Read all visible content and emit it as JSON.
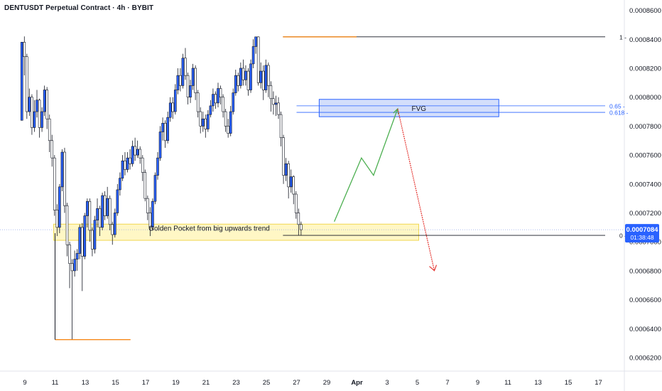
{
  "header": {
    "title": "DENTUSDT Perpetual Contract · 4h · BYBIT"
  },
  "colors": {
    "up": "#2962ff",
    "down": "#ffffff",
    "wick": "#131722",
    "fvg_fill": "#d3defb",
    "fvg_border": "#2962ff",
    "golden_fill": "#fff7c2",
    "golden_border": "#f0d64a",
    "fib_line": "#2962ff",
    "orange": "#f57c00",
    "green_arrow": "#4caf50",
    "red_arrow": "#e53935",
    "axis_text": "#131722",
    "price_badge": "#2962ff"
  },
  "chart_data": {
    "type": "candlestick",
    "title": "DENTUSDT Perpetual Contract · 4h · BYBIT",
    "timeframe": "4h",
    "exchange": "BYBIT",
    "ylim": [
      0.00062,
      0.00086
    ],
    "y_ticks": [
      "0.0006200",
      "0.0006400",
      "0.0006600",
      "0.0006800",
      "0.0007000",
      "0.0007200",
      "0.0007400",
      "0.0007600",
      "0.0007800",
      "0.0008000",
      "0.0008200",
      "0.0008400",
      "0.0008600"
    ],
    "x_ticks": [
      "9",
      "11",
      "13",
      "15",
      "17",
      "19",
      "21",
      "23",
      "25",
      "27",
      "29",
      "Apr",
      "3",
      "5",
      "7",
      "9",
      "11",
      "13",
      "15",
      "17"
    ],
    "current_price": "0.0007084",
    "countdown": "01:38:48",
    "annotations": {
      "fvg": {
        "label": "FVG",
        "top": 0.0007985,
        "bottom": 0.0007865,
        "start_day": 28.5,
        "end_day": 40.4
      },
      "golden_pocket": {
        "label": "Golden Pocket from big upwards trend",
        "top": 0.0007093,
        "bottom": 0.000704,
        "start_day": 11.0,
        "end_day": 35.0
      },
      "fib_levels": [
        {
          "label": "1",
          "price": 0.0008417
        },
        {
          "label": "0.65",
          "price": 0.000794
        },
        {
          "label": "0.618",
          "price": 0.0007895
        },
        {
          "label": "0",
          "price": 0.0007045
        }
      ],
      "swing_high": {
        "price": 0.0008417,
        "start_day": 26.1
      },
      "swing_low": {
        "price": 0.0006324,
        "start_day": 11.0,
        "end_day": 16.0
      },
      "projection_up": [
        [
          29.5,
          0.000714
        ],
        [
          31.3,
          0.000758
        ],
        [
          32.1,
          0.000746
        ],
        [
          33.7,
          0.000792
        ]
      ],
      "projection_down": [
        [
          33.7,
          0.000792
        ],
        [
          35.8,
          0.000685
        ]
      ]
    },
    "candles": [
      [
        0.000784,
        0.000838,
        0.000838,
        0.000784
      ],
      [
        0.000838,
        0.000828,
        0.000842,
        0.000815
      ],
      [
        0.000828,
        0.00079,
        0.00083,
        0.000785
      ],
      [
        0.00079,
        0.0008,
        0.000806,
        0.000787
      ],
      [
        0.0008,
        0.000779,
        0.000802,
        0.000774
      ],
      [
        0.000779,
        0.00079,
        0.000798,
        0.000776
      ],
      [
        0.00079,
        0.000798,
        0.000805,
        0.000786
      ],
      [
        0.000798,
        0.000779,
        0.000799,
        0.000772
      ],
      [
        0.000779,
        0.00079,
        0.000793,
        0.000776
      ],
      [
        0.00079,
        0.000805,
        0.000808,
        0.000787
      ],
      [
        0.000805,
        0.000785,
        0.000807,
        0.000778
      ],
      [
        0.000785,
        0.00077,
        0.000788,
        0.000762
      ],
      [
        0.00077,
        0.000758,
        0.000774,
        0.000752
      ],
      [
        0.000758,
        0.000722,
        0.00076,
        0.000718
      ],
      [
        0.000722,
        0.00071,
        0.000726,
        0.000704
      ],
      [
        0.00071,
        0.000738,
        0.00074,
        0.000706
      ],
      [
        0.000738,
        0.000762,
        0.000764,
        0.000735
      ],
      [
        0.000762,
        0.000725,
        0.000765,
        0.00072
      ],
      [
        0.000725,
        0.000698,
        0.000727,
        0.00069
      ],
      [
        0.000698,
        0.000685,
        0.0007,
        0.000668
      ],
      [
        0.000685,
        0.00068,
        0.000688,
        0.0006324
      ],
      [
        0.00068,
        0.000688,
        0.000694,
        0.000676
      ],
      [
        0.000688,
        0.000692,
        0.000695,
        0.00068
      ],
      [
        0.000692,
        0.00071,
        0.000712,
        0.000688
      ],
      [
        0.00071,
        0.00069,
        0.000713,
        0.000666
      ],
      [
        0.00069,
        0.000718,
        0.00072,
        0.000688
      ],
      [
        0.000718,
        0.000728,
        0.00073,
        0.00071
      ],
      [
        0.000728,
        0.000708,
        0.00073,
        0.0007
      ],
      [
        0.000708,
        0.000695,
        0.00071,
        0.00069
      ],
      [
        0.000695,
        0.000715,
        0.000718,
        0.000692
      ],
      [
        0.000715,
        0.000723,
        0.00073,
        0.00071
      ],
      [
        0.000723,
        0.00071,
        0.000725,
        0.000704
      ],
      [
        0.00071,
        0.000732,
        0.000734,
        0.000708
      ],
      [
        0.000732,
        0.000718,
        0.000735,
        0.000715
      ],
      [
        0.000718,
        0.00073,
        0.000738,
        0.000716
      ],
      [
        0.00073,
        0.000712,
        0.000732,
        0.000708
      ],
      [
        0.000712,
        0.000705,
        0.000714,
        0.000698
      ],
      [
        0.000705,
        0.00072,
        0.000723,
        0.000703
      ],
      [
        0.00072,
        0.000736,
        0.00074,
        0.000718
      ],
      [
        0.000736,
        0.000744,
        0.000748,
        0.000732
      ],
      [
        0.000744,
        0.000756,
        0.00076,
        0.000742
      ],
      [
        0.000756,
        0.00075,
        0.000762,
        0.000746
      ],
      [
        0.00075,
        0.000758,
        0.000762,
        0.000748
      ],
      [
        0.000758,
        0.000754,
        0.000764,
        0.00075
      ],
      [
        0.000754,
        0.000766,
        0.00077,
        0.000752
      ],
      [
        0.000766,
        0.00076,
        0.000772,
        0.000756
      ],
      [
        0.00076,
        0.000764,
        0.00077,
        0.000758
      ],
      [
        0.000764,
        0.000758,
        0.000766,
        0.000754
      ],
      [
        0.000758,
        0.000748,
        0.00076,
        0.000742
      ],
      [
        0.000748,
        0.00073,
        0.00075,
        0.000728
      ],
      [
        0.00073,
        0.00072,
        0.000732,
        0.000715
      ],
      [
        0.00072,
        0.00071,
        0.000724,
        0.000704
      ],
      [
        0.00071,
        0.000728,
        0.00073,
        0.000708
      ],
      [
        0.000728,
        0.000746,
        0.000748,
        0.000726
      ],
      [
        0.000746,
        0.000758,
        0.000762,
        0.000743
      ],
      [
        0.000758,
        0.000776,
        0.00078,
        0.000756
      ],
      [
        0.000776,
        0.000782,
        0.000786,
        0.00077
      ],
      [
        0.000782,
        0.00077,
        0.000784,
        0.000765
      ],
      [
        0.00077,
        0.000786,
        0.00079,
        0.000768
      ],
      [
        0.000786,
        0.000796,
        0.0008,
        0.000783
      ],
      [
        0.000796,
        0.00079,
        0.0008,
        0.000785
      ],
      [
        0.00079,
        0.000805,
        0.000809,
        0.000788
      ],
      [
        0.000805,
        0.000815,
        0.00082,
        0.000802
      ],
      [
        0.000815,
        0.000808,
        0.00082,
        0.000804
      ],
      [
        0.000808,
        0.000827,
        0.00083,
        0.000806
      ],
      [
        0.000827,
        0.000815,
        0.000834,
        0.000812
      ],
      [
        0.000815,
        0.0008,
        0.000817,
        0.000795
      ],
      [
        0.0008,
        0.000808,
        0.000812,
        0.000796
      ],
      [
        0.000808,
        0.00082,
        0.000823,
        0.000805
      ],
      [
        0.00082,
        0.000803,
        0.000822,
        0.000798
      ],
      [
        0.000803,
        0.00079,
        0.000805,
        0.000786
      ],
      [
        0.00079,
        0.00078,
        0.000793,
        0.000775
      ],
      [
        0.00078,
        0.000785,
        0.00079,
        0.000776
      ],
      [
        0.000785,
        0.000778,
        0.000788,
        0.000772
      ],
      [
        0.000778,
        0.000788,
        0.000791,
        0.000776
      ],
      [
        0.000788,
        0.000794,
        0.000798,
        0.000786
      ],
      [
        0.000794,
        0.000802,
        0.000806,
        0.00079
      ],
      [
        0.000802,
        0.000796,
        0.000804,
        0.000792
      ],
      [
        0.000796,
        0.000806,
        0.00081,
        0.000793
      ],
      [
        0.000806,
        0.0008,
        0.000808,
        0.000795
      ],
      [
        0.0008,
        0.00079,
        0.000802,
        0.000786
      ],
      [
        0.00079,
        0.00078,
        0.000792,
        0.000776
      ],
      [
        0.00078,
        0.000775,
        0.000785,
        0.000772
      ],
      [
        0.000775,
        0.00079,
        0.000794,
        0.000773
      ],
      [
        0.00079,
        0.000803,
        0.000806,
        0.000788
      ],
      [
        0.000803,
        0.000815,
        0.000819,
        0.000801
      ],
      [
        0.000815,
        0.000808,
        0.000817,
        0.000804
      ],
      [
        0.000808,
        0.00082,
        0.000824,
        0.000806
      ],
      [
        0.00082,
        0.000812,
        0.000826,
        0.000808
      ],
      [
        0.000812,
        0.000818,
        0.000822,
        0.000808
      ],
      [
        0.000818,
        0.000805,
        0.00082,
        0.000801
      ],
      [
        0.000805,
        0.000823,
        0.000826,
        0.000803
      ],
      [
        0.000823,
        0.000835,
        0.00084,
        0.00082
      ],
      [
        0.000835,
        0.0008417,
        0.0008417,
        0.00083
      ],
      [
        0.0008417,
        0.00081,
        0.000842,
        0.000808
      ],
      [
        0.00081,
        0.000818,
        0.000824,
        0.000806
      ],
      [
        0.000818,
        0.000805,
        0.000822,
        0.000798
      ],
      [
        0.000805,
        0.000822,
        0.000826,
        0.000803
      ],
      [
        0.000822,
        0.000808,
        0.000824,
        0.0008
      ],
      [
        0.000808,
        0.000799,
        0.000811,
        0.00079
      ],
      [
        0.000799,
        0.000795,
        0.000804,
        0.000788
      ],
      [
        0.000795,
        0.000796,
        0.000801,
        0.000787
      ],
      [
        0.000796,
        0.000788,
        0.0008,
        0.000785
      ],
      [
        0.000788,
        0.000772,
        0.00079,
        0.000766
      ],
      [
        0.000772,
        0.000746,
        0.000774,
        0.00074
      ],
      [
        0.000746,
        0.000754,
        0.000758,
        0.000742
      ],
      [
        0.000754,
        0.000738,
        0.000756,
        0.00073
      ],
      [
        0.000738,
        0.000745,
        0.00075,
        0.000734
      ],
      [
        0.000745,
        0.000733,
        0.000746,
        0.000726
      ],
      [
        0.000733,
        0.00072,
        0.000735,
        0.000716
      ],
      [
        0.00072,
        0.000712,
        0.000723,
        0.0007045
      ],
      [
        0.000712,
        0.0007084,
        0.000714,
        0.0007045
      ]
    ]
  }
}
